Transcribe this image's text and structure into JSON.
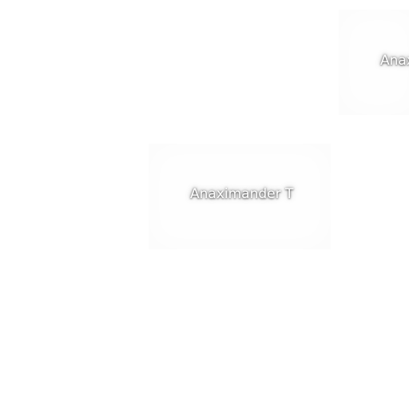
{
  "tiles": [
    {
      "label": "Anaximander T"
    },
    {
      "label": "Anaximander T"
    }
  ],
  "colors": {
    "background": "#ffffff",
    "caption_text": "#ffffff"
  }
}
